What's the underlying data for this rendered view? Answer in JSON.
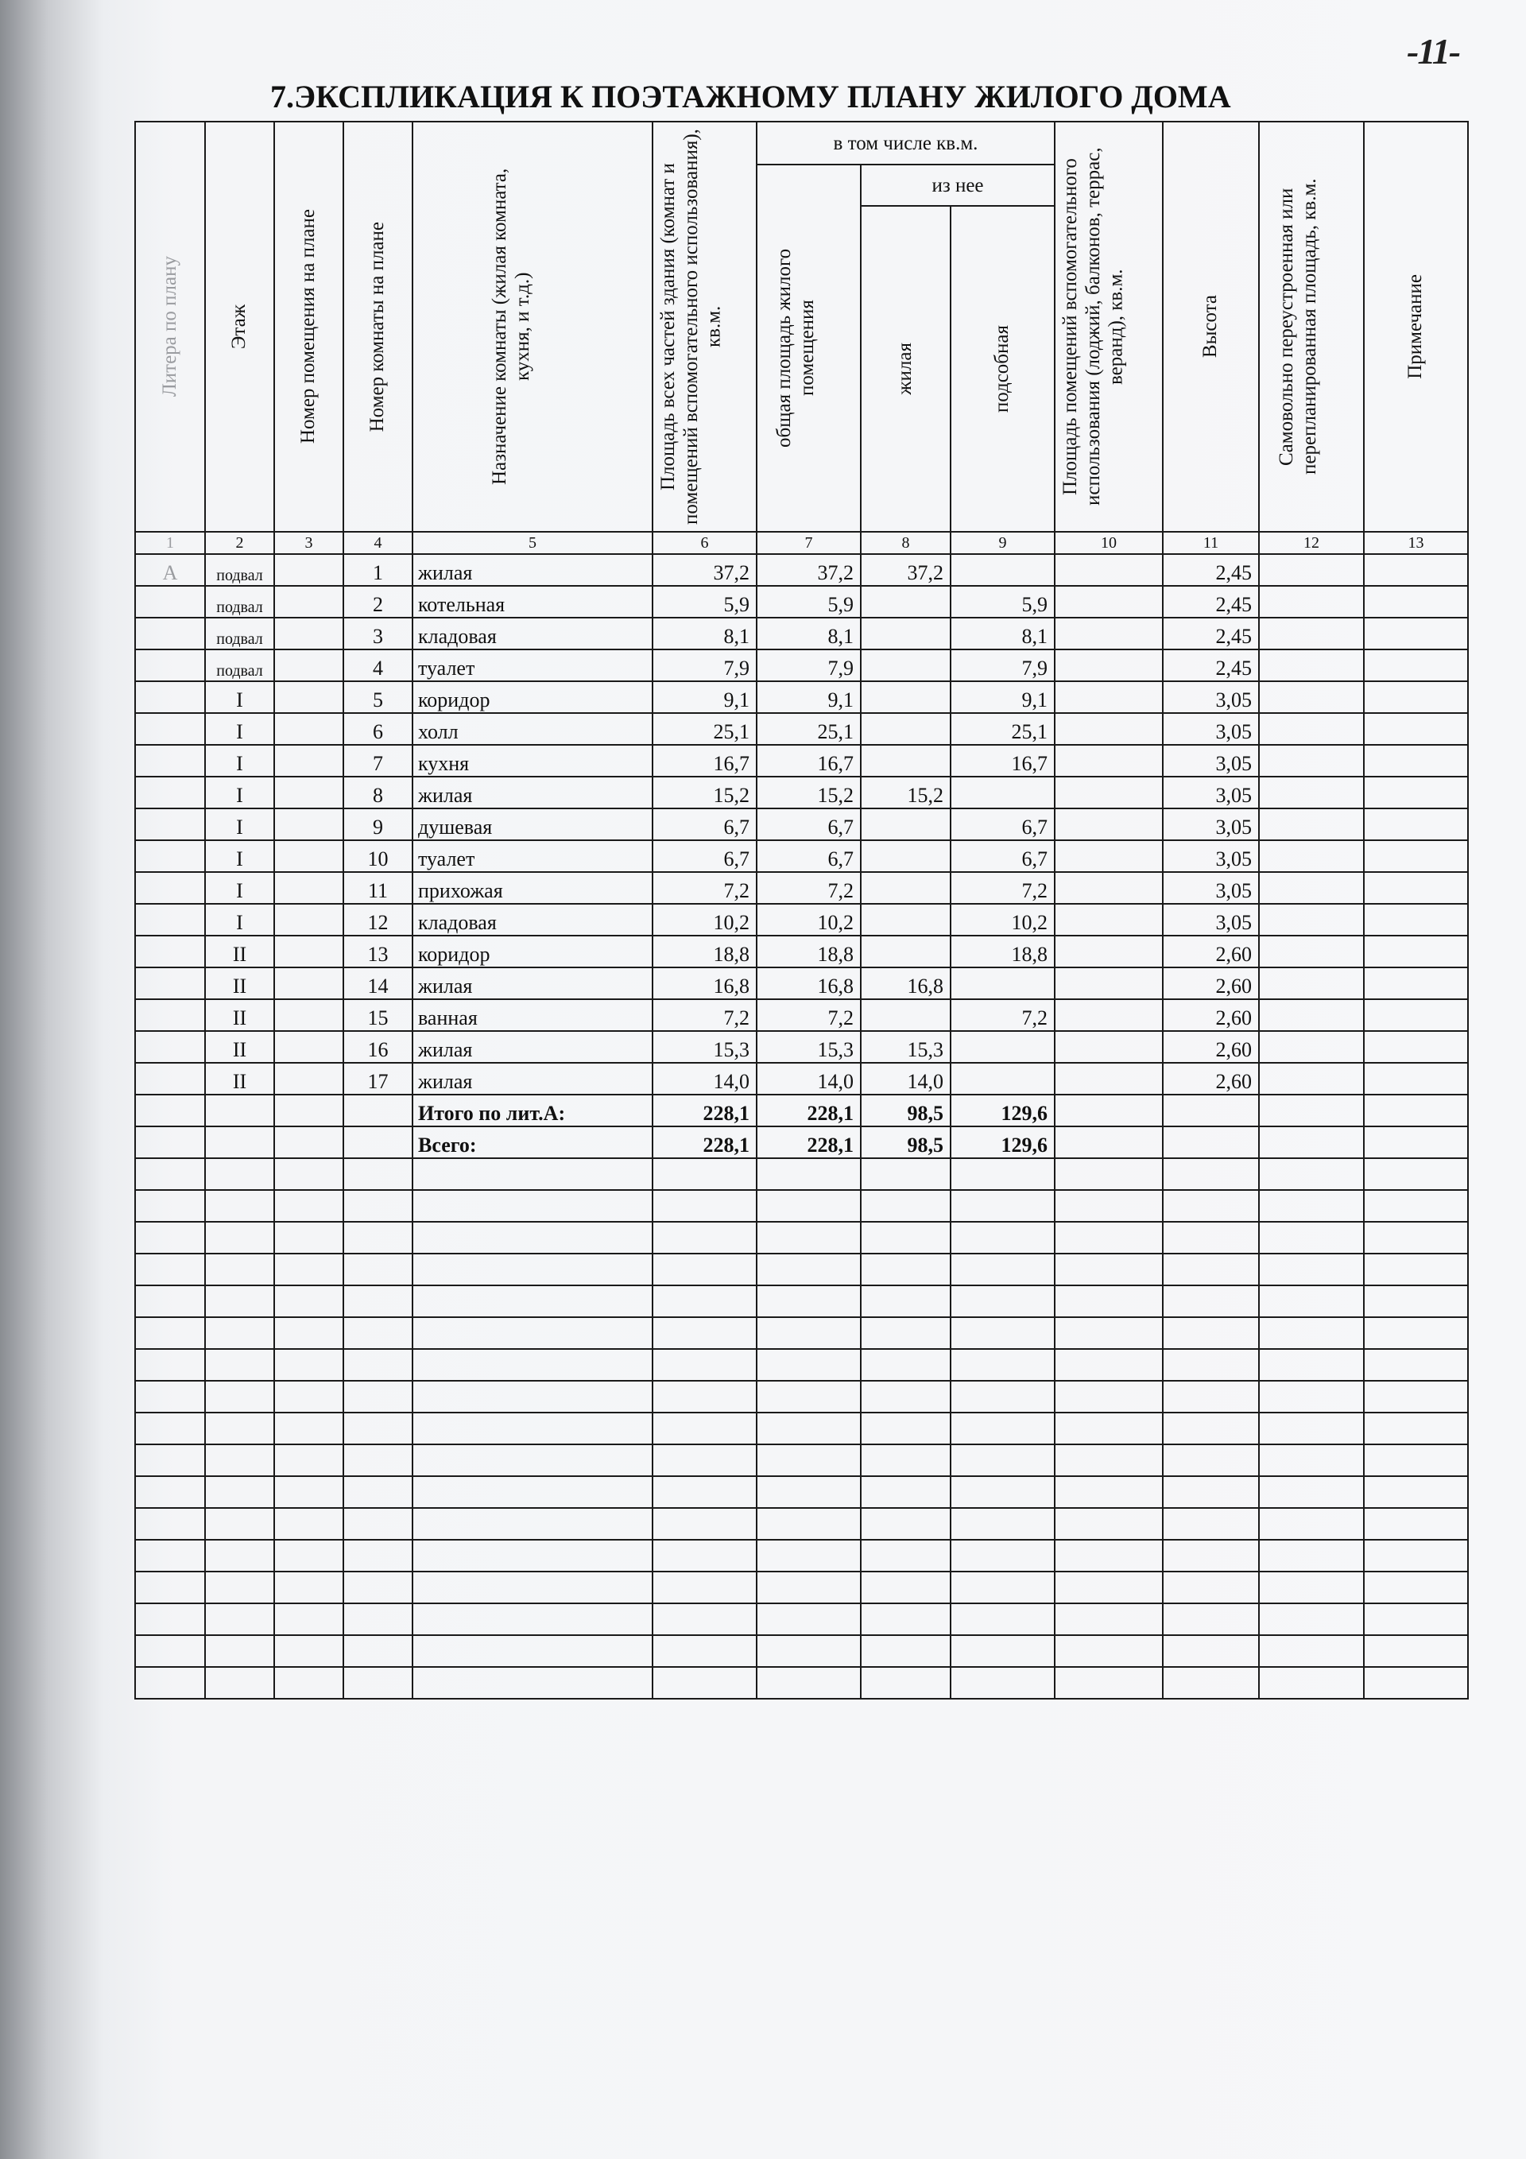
{
  "page_number": "-11-",
  "title": "7.ЭКСПЛИКАЦИЯ К ПОЭТАЖНОМУ ПЛАНУ ЖИЛОГО ДОМА",
  "headers": {
    "c1": "Литера по плану",
    "c2": "Этаж",
    "c3": "Номер помещения на плане",
    "c4": "Номер комнаты на плане",
    "c5": "Назначение комнаты (жилая комната, кухня, и т.д.)",
    "c6": "Площадь всех частей здания (комнат и помещений вспомогательного использования), кв.м.",
    "group_7_9": "в том числе кв.м.",
    "c7": "общая площадь жилого помещения",
    "group_8_9": "из нее",
    "c8": "жилая",
    "c9": "подсобная",
    "c10": "Площадь помещений вспомогательного использования (лоджий, балконов, террас, веранд), кв.м.",
    "c11": "Высота",
    "c12": "Самовольно переустроенная или перепланированная площадь, кв.м.",
    "c13": "Примечание"
  },
  "column_numbers": [
    "1",
    "2",
    "3",
    "4",
    "5",
    "6",
    "7",
    "8",
    "9",
    "10",
    "11",
    "12",
    "13"
  ],
  "rows": [
    [
      "А",
      "подвал",
      "",
      "1",
      "жилая",
      "37,2",
      "37,2",
      "37,2",
      "",
      "",
      "2,45",
      "",
      ""
    ],
    [
      "",
      "подвал",
      "",
      "2",
      "котельная",
      "5,9",
      "5,9",
      "",
      "5,9",
      "",
      "2,45",
      "",
      ""
    ],
    [
      "",
      "подвал",
      "",
      "3",
      "кладовая",
      "8,1",
      "8,1",
      "",
      "8,1",
      "",
      "2,45",
      "",
      ""
    ],
    [
      "",
      "подвал",
      "",
      "4",
      "туалет",
      "7,9",
      "7,9",
      "",
      "7,9",
      "",
      "2,45",
      "",
      ""
    ],
    [
      "",
      "I",
      "",
      "5",
      "коридор",
      "9,1",
      "9,1",
      "",
      "9,1",
      "",
      "3,05",
      "",
      ""
    ],
    [
      "",
      "I",
      "",
      "6",
      "холл",
      "25,1",
      "25,1",
      "",
      "25,1",
      "",
      "3,05",
      "",
      ""
    ],
    [
      "",
      "I",
      "",
      "7",
      "кухня",
      "16,7",
      "16,7",
      "",
      "16,7",
      "",
      "3,05",
      "",
      ""
    ],
    [
      "",
      "I",
      "",
      "8",
      "жилая",
      "15,2",
      "15,2",
      "15,2",
      "",
      "",
      "3,05",
      "",
      ""
    ],
    [
      "",
      "I",
      "",
      "9",
      "душевая",
      "6,7",
      "6,7",
      "",
      "6,7",
      "",
      "3,05",
      "",
      ""
    ],
    [
      "",
      "I",
      "",
      "10",
      "туалет",
      "6,7",
      "6,7",
      "",
      "6,7",
      "",
      "3,05",
      "",
      ""
    ],
    [
      "",
      "I",
      "",
      "11",
      "прихожая",
      "7,2",
      "7,2",
      "",
      "7,2",
      "",
      "3,05",
      "",
      ""
    ],
    [
      "",
      "I",
      "",
      "12",
      "кладовая",
      "10,2",
      "10,2",
      "",
      "10,2",
      "",
      "3,05",
      "",
      ""
    ],
    [
      "",
      "II",
      "",
      "13",
      "коридор",
      "18,8",
      "18,8",
      "",
      "18,8",
      "",
      "2,60",
      "",
      ""
    ],
    [
      "",
      "II",
      "",
      "14",
      "жилая",
      "16,8",
      "16,8",
      "16,8",
      "",
      "",
      "2,60",
      "",
      ""
    ],
    [
      "",
      "II",
      "",
      "15",
      "ванная",
      "7,2",
      "7,2",
      "",
      "7,2",
      "",
      "2,60",
      "",
      ""
    ],
    [
      "",
      "II",
      "",
      "16",
      "жилая",
      "15,3",
      "15,3",
      "15,3",
      "",
      "",
      "2,60",
      "",
      ""
    ],
    [
      "",
      "II",
      "",
      "17",
      "жилая",
      "14,0",
      "14,0",
      "14,0",
      "",
      "",
      "2,60",
      "",
      ""
    ]
  ],
  "totals": [
    [
      "",
      "",
      "",
      "",
      "Итого по лит.А:",
      "228,1",
      "228,1",
      "98,5",
      "129,6",
      "",
      "",
      "",
      ""
    ],
    [
      "",
      "",
      "",
      "",
      "Всего:",
      "228,1",
      "228,1",
      "98,5",
      "129,6",
      "",
      "",
      "",
      ""
    ]
  ]
}
